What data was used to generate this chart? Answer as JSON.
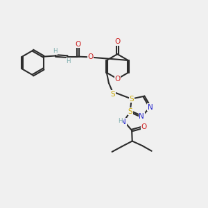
{
  "background_color": "#f0f0f0",
  "bond_color": "#2c2c2c",
  "bond_width": 1.5,
  "atom_colors": {
    "C": "#2c2c2c",
    "H": "#7aacac",
    "N": "#2020cc",
    "O": "#cc2020",
    "S": "#ccaa00"
  }
}
